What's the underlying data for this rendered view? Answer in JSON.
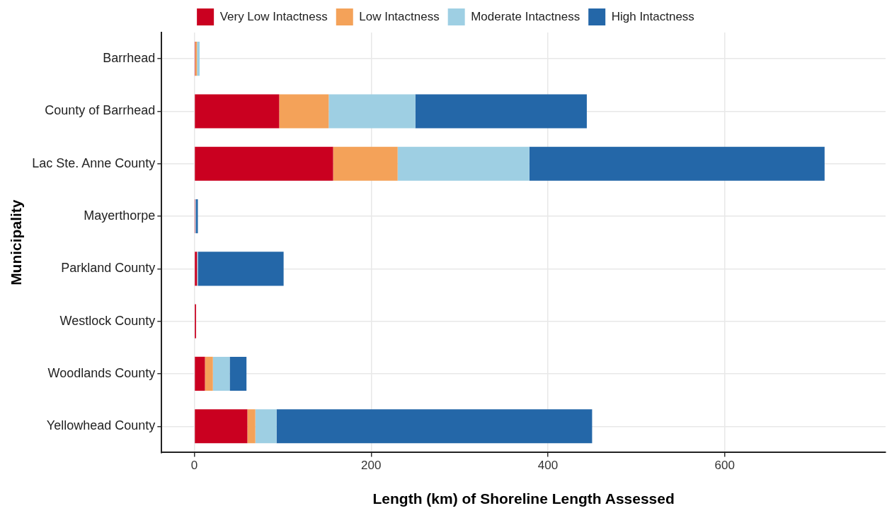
{
  "chart_data": {
    "type": "bar",
    "orientation": "horizontal",
    "stacked": true,
    "xlabel": "Length (km) of Shoreline Length Assessed",
    "ylabel": "Municipality",
    "categories": [
      "Barrhead",
      "County of Barrhead",
      "Lac Ste. Anne County",
      "Mayerthorpe",
      "Parkland County",
      "Westlock County",
      "Woodlands County",
      "Yellowhead County"
    ],
    "series": [
      {
        "name": "Very Low Intactness",
        "color": "#ca0020",
        "values": [
          1,
          96,
          157,
          1,
          3,
          2,
          12,
          60
        ]
      },
      {
        "name": "Low Intactness",
        "color": "#f4a259",
        "values": [
          2,
          56,
          73,
          0,
          0,
          0,
          9,
          9
        ]
      },
      {
        "name": "Moderate Intactness",
        "color": "#9ecfe3",
        "values": [
          3,
          98,
          149,
          1,
          1,
          0,
          19,
          24
        ]
      },
      {
        "name": "High Intactness",
        "color": "#2467a8",
        "values": [
          0,
          194,
          334,
          2,
          97,
          0,
          19,
          357
        ]
      }
    ],
    "xlim": [
      -37,
      782
    ],
    "xticks": [
      0,
      200,
      400,
      600
    ],
    "grid": true,
    "legend": "top"
  }
}
